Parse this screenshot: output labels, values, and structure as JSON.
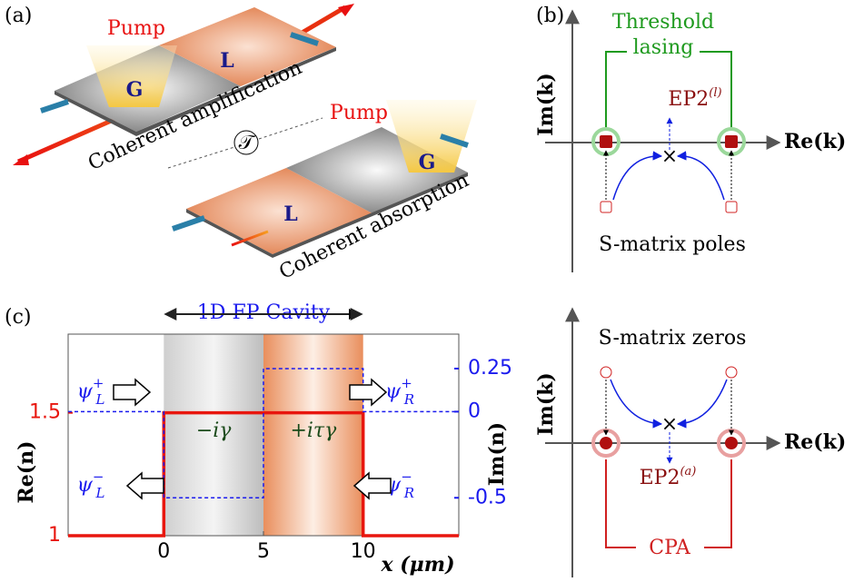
{
  "panel_a": {
    "label": "(a)",
    "pump_top": "Pump",
    "gain_top": "G",
    "loss_top": "L",
    "caption_top": "Coherent amplification",
    "symmetry": "𝒯",
    "pump_bottom": "Pump",
    "gain_bottom": "G",
    "loss_bottom": "L",
    "caption_bottom": "Coherent absorption"
  },
  "panel_b": {
    "label": "(b)",
    "y_axis": "Im(k)",
    "x_axis": "Re(k)",
    "title_lines": [
      "Threshold",
      "lasing"
    ],
    "ep": "EP2",
    "ep_sup": "(l)",
    "caption": "S-matrix poles"
  },
  "chart_data": {
    "type": "line",
    "label": "(c)",
    "title": "1D FP Cavity",
    "x_label": "x (μm)",
    "y_label": "Re(n)",
    "y2_label": "Im(n)",
    "xlim": [
      -4.8,
      14.8
    ],
    "xticks": [
      0,
      5,
      10
    ],
    "ylim": [
      1,
      1.82
    ],
    "yticks": [
      1,
      1.5
    ],
    "y2lim": [
      -0.72,
      0.45
    ],
    "y2ticks": [
      0.25,
      0,
      -0.5
    ],
    "series": [
      {
        "name": "Re(n)",
        "color": "#e8160e",
        "x": [
          -4.8,
          0,
          0,
          10,
          10,
          14.8
        ],
        "values": [
          1,
          1,
          1.5,
          1.5,
          1,
          1
        ]
      },
      {
        "name": "Im(n)",
        "color": "#1a1aee",
        "axis": "y2",
        "dashed": true,
        "x": [
          -4.8,
          0,
          0,
          5,
          5,
          10,
          10,
          14.8
        ],
        "values": [
          0,
          0,
          -0.5,
          -0.5,
          0.25,
          0.25,
          0,
          0
        ]
      }
    ],
    "annotations": {
      "gain": "−iγ",
      "loss": "+iτγ",
      "waves": [
        {
          "base": "ψ",
          "sub": "L",
          "sup": "+"
        },
        {
          "base": "ψ",
          "sub": "R",
          "sup": "+"
        },
        {
          "base": "ψ",
          "sub": "L",
          "sup": "−"
        },
        {
          "base": "ψ",
          "sub": "R",
          "sup": "−"
        }
      ]
    }
  },
  "panel_d": {
    "y_axis": "Im(k)",
    "x_axis": "Re(k)",
    "caption": "S-matrix zeros",
    "ep": "EP2",
    "ep_sup": "(a)",
    "bottom": "CPA"
  }
}
